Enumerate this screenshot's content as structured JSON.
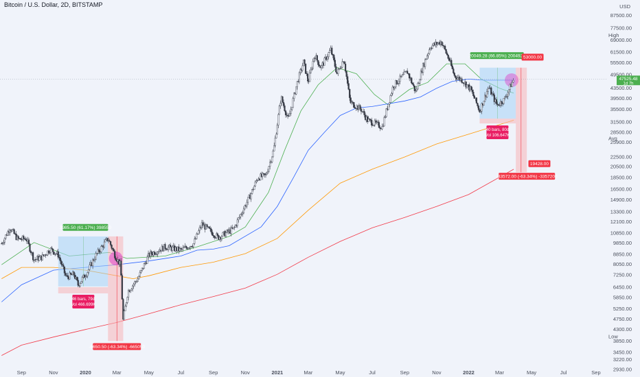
{
  "header": {
    "symbol_title": "Bitcoin / U.S. Dollar, 2D, BITSTAMP",
    "currency": "USD"
  },
  "colors": {
    "background": "#f0f3fa",
    "candle": "#363a45",
    "ma_green": "#4caf50",
    "ma_blue": "#2962ff",
    "ma_orange": "#ff9800",
    "ma_red": "#f23645",
    "profit": "#4caf50",
    "loss": "#f23645",
    "zone_blue": "#a6d1f5",
    "zone_red": "#f7b4b8",
    "highlight": "#e040c8"
  },
  "chart_data": {
    "type": "candlestick",
    "scale": "log",
    "timeframe": "2D",
    "exchange": "BITSTAMP",
    "ylim": [
      2930,
      97500
    ],
    "y_ticks": [
      97500,
      87500,
      77500,
      69000,
      61500,
      55500,
      49500,
      43500,
      39500,
      35500,
      31500,
      28500,
      25900,
      22500,
      20500,
      18500,
      16500,
      14900,
      13300,
      12100,
      10850,
      9850,
      8850,
      8050,
      7250,
      6450,
      5850,
      5250,
      4750,
      4300,
      3850,
      3450,
      3220,
      2930
    ],
    "x_tick_labels": [
      "Sep",
      "Nov",
      "2020",
      "Mar",
      "May",
      "Jul",
      "Sep",
      "Nov",
      "2021",
      "Mar",
      "May",
      "Jul",
      "Sep",
      "Nov",
      "2022",
      "Mar",
      "May",
      "Jul",
      "Sep"
    ],
    "xlim": [
      "2019-07-22",
      "2022-09-22"
    ],
    "series_close": [
      [
        "2019-07-25",
        9800
      ],
      [
        "2019-08-10",
        11400
      ],
      [
        "2019-08-25",
        10200
      ],
      [
        "2019-09-10",
        10300
      ],
      [
        "2019-09-25",
        8400
      ],
      [
        "2019-10-10",
        8600
      ],
      [
        "2019-10-26",
        9300
      ],
      [
        "2019-11-10",
        8800
      ],
      [
        "2019-11-25",
        7100
      ],
      [
        "2019-12-10",
        7300
      ],
      [
        "2019-12-18",
        6600
      ],
      [
        "2020-01-05",
        7500
      ],
      [
        "2020-01-20",
        8700
      ],
      [
        "2020-02-13",
        10300
      ],
      [
        "2020-02-28",
        8600
      ],
      [
        "2020-03-08",
        8000
      ],
      [
        "2020-03-13",
        4700
      ],
      [
        "2020-03-22",
        6200
      ],
      [
        "2020-04-10",
        7000
      ],
      [
        "2020-05-01",
        8800
      ],
      [
        "2020-06-01",
        9500
      ],
      [
        "2020-07-01",
        9200
      ],
      [
        "2020-07-25",
        9800
      ],
      [
        "2020-08-10",
        11800
      ],
      [
        "2020-09-10",
        10400
      ],
      [
        "2020-10-10",
        11300
      ],
      [
        "2020-10-25",
        13200
      ],
      [
        "2020-11-10",
        15500
      ],
      [
        "2020-11-25",
        18500
      ],
      [
        "2020-12-10",
        18800
      ],
      [
        "2020-12-25",
        24000
      ],
      [
        "2021-01-08",
        40000
      ],
      [
        "2021-01-22",
        32000
      ],
      [
        "2021-02-08",
        46000
      ],
      [
        "2021-02-20",
        56000
      ],
      [
        "2021-03-01",
        46000
      ],
      [
        "2021-03-13",
        60000
      ],
      [
        "2021-03-25",
        53000
      ],
      [
        "2021-04-13",
        63000
      ],
      [
        "2021-04-25",
        50000
      ],
      [
        "2021-05-08",
        58000
      ],
      [
        "2021-05-20",
        38000
      ],
      [
        "2021-06-10",
        35500
      ],
      [
        "2021-06-22",
        32000
      ],
      [
        "2021-07-20",
        30000
      ],
      [
        "2021-08-10",
        44500
      ],
      [
        "2021-09-06",
        51000
      ],
      [
        "2021-09-22",
        42000
      ],
      [
        "2021-10-05",
        53000
      ],
      [
        "2021-10-20",
        65000
      ],
      [
        "2021-11-10",
        68000
      ],
      [
        "2021-11-25",
        57000
      ],
      [
        "2021-12-05",
        49000
      ],
      [
        "2021-12-20",
        47000
      ],
      [
        "2022-01-05",
        43000
      ],
      [
        "2022-01-22",
        35000
      ],
      [
        "2022-02-08",
        44000
      ],
      [
        "2022-02-24",
        37000
      ],
      [
        "2022-03-10",
        39000
      ],
      [
        "2022-03-28",
        47500
      ]
    ],
    "moving_averages": [
      {
        "color": "green",
        "points": [
          [
            "2019-07-25",
            8000
          ],
          [
            "2019-09-25",
            9900
          ],
          [
            "2019-12-01",
            8700
          ],
          [
            "2020-02-15",
            9000
          ],
          [
            "2020-03-20",
            8500
          ],
          [
            "2020-06-01",
            8700
          ],
          [
            "2020-08-01",
            9500
          ],
          [
            "2020-10-01",
            10500
          ],
          [
            "2020-11-01",
            11500
          ],
          [
            "2020-12-15",
            16000
          ],
          [
            "2021-01-15",
            24000
          ],
          [
            "2021-02-15",
            35000
          ],
          [
            "2021-03-20",
            45000
          ],
          [
            "2021-04-25",
            53000
          ],
          [
            "2021-06-01",
            50000
          ],
          [
            "2021-07-05",
            41000
          ],
          [
            "2021-08-01",
            37000
          ],
          [
            "2021-09-10",
            43000
          ],
          [
            "2021-10-15",
            46000
          ],
          [
            "2021-11-20",
            55000
          ],
          [
            "2021-12-25",
            55000
          ],
          [
            "2022-01-25",
            47500
          ],
          [
            "2022-03-01",
            43500
          ],
          [
            "2022-03-28",
            41500
          ]
        ]
      },
      {
        "color": "blue",
        "points": [
          [
            "2019-07-25",
            5600
          ],
          [
            "2019-09-01",
            6600
          ],
          [
            "2019-11-01",
            7600
          ],
          [
            "2020-01-01",
            7800
          ],
          [
            "2020-03-01",
            8000
          ],
          [
            "2020-05-01",
            8300
          ],
          [
            "2020-07-01",
            8700
          ],
          [
            "2020-08-01",
            9200
          ],
          [
            "2020-09-01",
            9300
          ],
          [
            "2020-10-01",
            9600
          ],
          [
            "2020-12-01",
            11500
          ],
          [
            "2021-01-01",
            14000
          ],
          [
            "2021-02-01",
            18500
          ],
          [
            "2021-03-01",
            24000
          ],
          [
            "2021-04-01",
            28500
          ],
          [
            "2021-05-01",
            33500
          ],
          [
            "2021-06-01",
            36000
          ],
          [
            "2021-07-01",
            36500
          ],
          [
            "2021-09-01",
            38500
          ],
          [
            "2021-10-01",
            40000
          ],
          [
            "2021-11-01",
            43500
          ],
          [
            "2021-12-01",
            46500
          ],
          [
            "2022-01-01",
            47500
          ],
          [
            "2022-02-01",
            47000
          ],
          [
            "2022-03-28",
            47000
          ]
        ]
      },
      {
        "color": "orange",
        "points": [
          [
            "2019-07-25",
            7000
          ],
          [
            "2019-09-01",
            7800
          ],
          [
            "2019-11-01",
            7800
          ],
          [
            "2020-01-01",
            7600
          ],
          [
            "2020-03-01",
            7200
          ],
          [
            "2020-04-01",
            7000
          ],
          [
            "2020-05-01",
            7200
          ],
          [
            "2020-07-01",
            7800
          ],
          [
            "2020-09-01",
            8200
          ],
          [
            "2020-11-01",
            8900
          ],
          [
            "2021-01-01",
            10300
          ],
          [
            "2021-03-01",
            13500
          ],
          [
            "2021-05-01",
            17500
          ],
          [
            "2021-07-01",
            20000
          ],
          [
            "2021-09-01",
            22500
          ],
          [
            "2021-11-01",
            25500
          ],
          [
            "2022-01-01",
            28000
          ],
          [
            "2022-03-28",
            32000
          ]
        ]
      },
      {
        "color": "red",
        "points": [
          [
            "2019-07-25",
            3350
          ],
          [
            "2019-09-01",
            3700
          ],
          [
            "2019-11-01",
            4000
          ],
          [
            "2020-01-01",
            4300
          ],
          [
            "2020-03-01",
            4600
          ],
          [
            "2020-05-01",
            5000
          ],
          [
            "2020-07-01",
            5450
          ],
          [
            "2020-09-01",
            5900
          ],
          [
            "2020-11-01",
            6400
          ],
          [
            "2021-01-01",
            7300
          ],
          [
            "2021-03-01",
            8600
          ],
          [
            "2021-05-01",
            10000
          ],
          [
            "2021-07-01",
            11400
          ],
          [
            "2021-09-01",
            12600
          ],
          [
            "2021-11-01",
            14000
          ],
          [
            "2022-01-01",
            15700
          ],
          [
            "2022-03-28",
            20000
          ]
        ]
      }
    ],
    "last_price": 47525.48,
    "markers": {
      "high": "High",
      "avg": "Avg",
      "low": "Low",
      "avg_value": 26913.46
    },
    "last_price_label": "47525.48",
    "last_price_sublabel": "1d 7h",
    "annotations": {
      "range_2020_up": {
        "label": "3985.50 (61.17%) 398550",
        "x1": "2019-11-10",
        "x2": "2020-02-13",
        "y1": 6500,
        "y2": 10500
      },
      "range_2020_box": {
        "line1": "46 bars, 79d",
        "line2": "Vol 466.699K"
      },
      "range_2020_down": {
        "label": "-6650.50 (-63.34%) -665050",
        "x1": "2020-02-13",
        "x2": "2020-03-13",
        "y1": 3850,
        "y2": 10500
      },
      "range_2022_up": {
        "label": "20049.28 (66.85%) 2004929",
        "x1": "2022-01-22",
        "x2": "2022-04-01",
        "y1": 32500,
        "y2": 53000
      },
      "range_2022_box": {
        "line1": "40 bars, 80d",
        "line2": "Vol 106.647K"
      },
      "range_2022_down": {
        "label": "-33572.00 (-63.34%) -3357200",
        "x1": "2022-04-01",
        "x2": "2022-04-22",
        "y1": 19428,
        "y2": 53000
      },
      "target_top": "53000.00",
      "target_bottom": "19428.00"
    }
  }
}
